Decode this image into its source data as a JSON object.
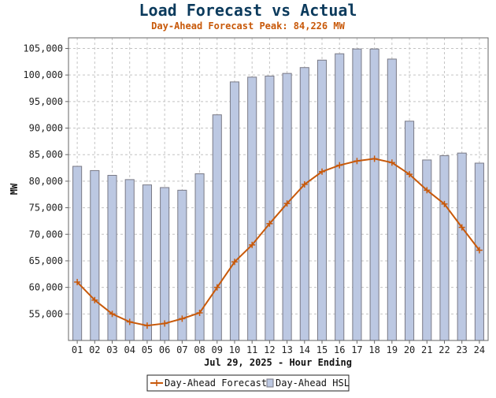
{
  "chart_data": {
    "type": "bar",
    "title": "Load Forecast vs Actual",
    "subtitle": "Day-Ahead Forecast Peak:  84,226 MW",
    "xlabel": "Jul 29, 2025 - Hour Ending",
    "ylabel": "MW",
    "categories": [
      "01",
      "02",
      "03",
      "04",
      "05",
      "06",
      "07",
      "08",
      "09",
      "10",
      "11",
      "12",
      "13",
      "14",
      "15",
      "16",
      "17",
      "18",
      "19",
      "20",
      "21",
      "22",
      "23",
      "24"
    ],
    "ylim": [
      50000,
      107000
    ],
    "yticks": [
      55000,
      60000,
      65000,
      70000,
      75000,
      80000,
      85000,
      90000,
      95000,
      100000,
      105000
    ],
    "ytick_labels": [
      "55,000",
      "60,000",
      "65,000",
      "70,000",
      "75,000",
      "80,000",
      "85,000",
      "90,000",
      "95,000",
      "100,000",
      "105,000"
    ],
    "grid": true,
    "legend_position": "bottom-center",
    "series": [
      {
        "name": "Day-Ahead Forecast",
        "type": "line",
        "color": "#c8590a",
        "marker": "plus",
        "values": [
          61000,
          57600,
          55000,
          53500,
          52800,
          53200,
          54100,
          55200,
          60000,
          64800,
          68000,
          72000,
          75800,
          79400,
          81800,
          83000,
          83800,
          84226,
          83500,
          81300,
          78300,
          75700,
          71300,
          67000
        ]
      },
      {
        "name": "Day-Ahead HSL",
        "type": "bar",
        "color": "#bcc8e2",
        "edge_color": "#7a7a86",
        "values": [
          82800,
          82000,
          81100,
          80300,
          79300,
          78800,
          78300,
          81400,
          92500,
          98700,
          99600,
          99800,
          100300,
          101400,
          102800,
          104000,
          104900,
          104900,
          103000,
          91300,
          84000,
          84800,
          85300,
          83400
        ]
      }
    ]
  }
}
